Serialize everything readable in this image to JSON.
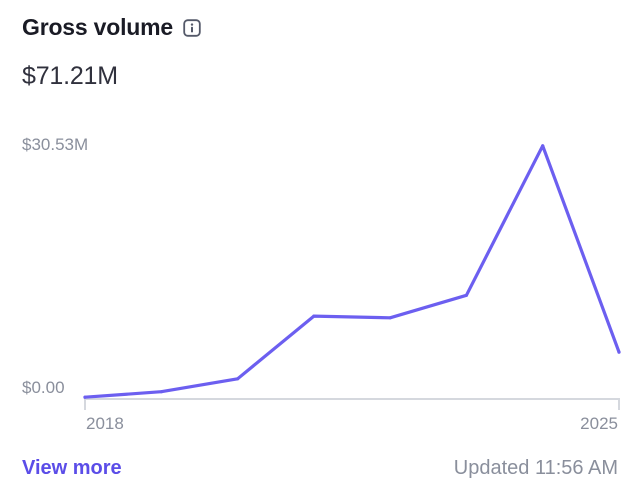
{
  "card": {
    "title": "Gross volume",
    "total": "$71.21M",
    "view_more": "View more",
    "updated": "Updated 11:56 AM"
  },
  "icons": {
    "info": "info-icon"
  },
  "colors": {
    "line": "#6c5ff0",
    "link": "#5b4de8",
    "axis": "#d5d8de",
    "muted_text": "#8a8f9c"
  },
  "chart_data": {
    "type": "line",
    "y_max_label": "$30.53M",
    "y_min_label": "$0.00",
    "x_start_label": "2018",
    "x_end_label": "2025",
    "ylim": [
      0,
      30.53
    ],
    "y_unit": "$M",
    "grid": false,
    "series": [
      {
        "values": [
          0.1,
          0.75,
          2.3,
          9.8,
          9.6,
          12.3,
          30.2,
          5.5
        ]
      }
    ]
  }
}
